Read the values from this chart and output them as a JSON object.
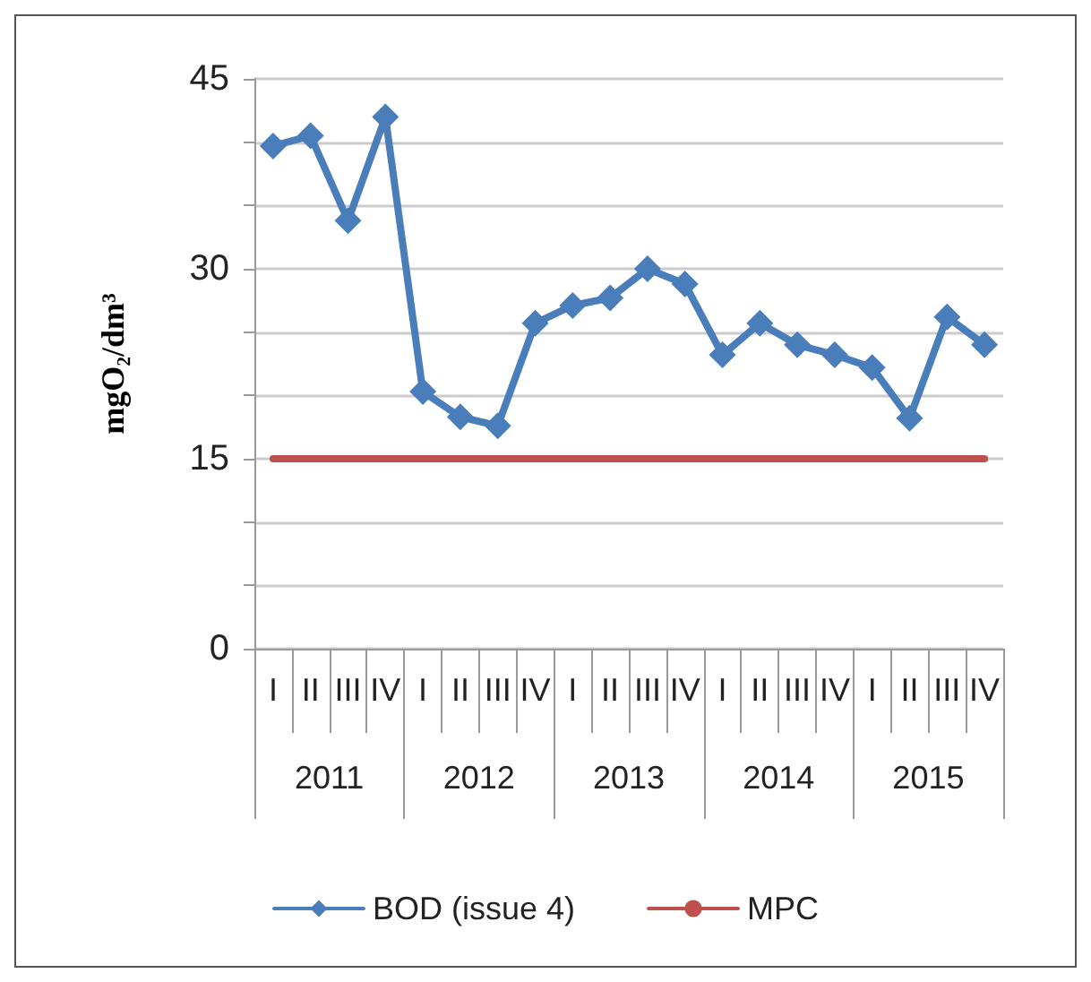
{
  "chart_data": {
    "type": "line",
    "ylabel": "mgO₂/dm³",
    "categories": [
      "I",
      "II",
      "III",
      "IV",
      "I",
      "II",
      "III",
      "IV",
      "I",
      "II",
      "III",
      "IV",
      "I",
      "II",
      "III",
      "IV",
      "I",
      "II",
      "III",
      "IV"
    ],
    "annotations": [
      "2011",
      "2012",
      "2013",
      "2014",
      "2015"
    ],
    "series": [
      {
        "name": "BOD (issue 4)",
        "color": "#4a7ebb",
        "marker": "diamond",
        "values": [
          39.7,
          40.5,
          33.8,
          42.0,
          20.3,
          18.3,
          17.6,
          25.7,
          27.1,
          27.7,
          30.0,
          28.8,
          23.2,
          25.7,
          24.0,
          23.2,
          22.2,
          18.2,
          26.2,
          24.0
        ]
      },
      {
        "name": "MPC",
        "color": "#c0504d",
        "marker": "none",
        "values": [
          15,
          15,
          15,
          15,
          15,
          15,
          15,
          15,
          15,
          15,
          15,
          15,
          15,
          15,
          15,
          15,
          15,
          15,
          15,
          15
        ]
      }
    ],
    "ylim": [
      0,
      45
    ],
    "yticks": [
      0,
      {
        "value": 5,
        "label": null
      },
      {
        "value": 10,
        "label": null
      },
      15,
      {
        "value": 20,
        "label": null
      },
      {
        "value": 25,
        "label": null
      },
      30,
      {
        "value": 35,
        "label": null
      },
      {
        "value": 40,
        "label": null
      },
      45
    ],
    "grid": "y",
    "legend": "bottom",
    "line_style": "solid"
  }
}
